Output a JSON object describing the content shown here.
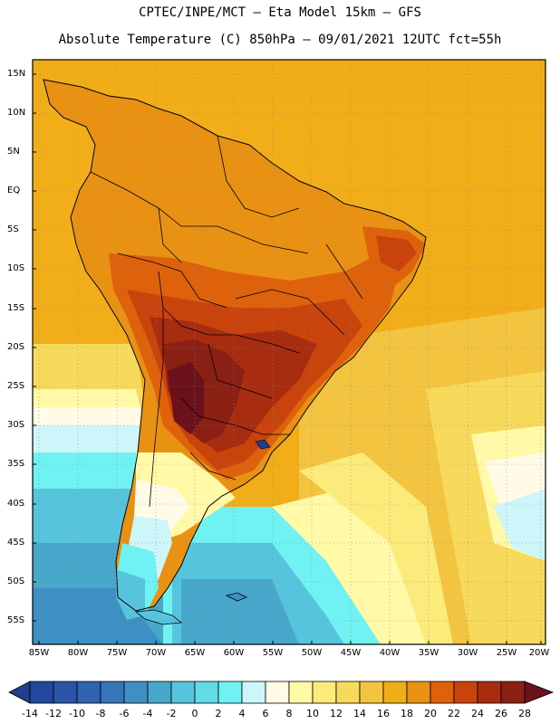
{
  "header": {
    "line1": "CPTEC/INPE/MCT –  Eta Model 15km – GFS",
    "line2": "Absolute Temperature (C) 850hPa – 09/01/2021 12UTC fct=55h"
  },
  "axes": {
    "lat_labels": [
      "15N",
      "10N",
      "5N",
      "EQ",
      "5S",
      "10S",
      "15S",
      "20S",
      "25S",
      "30S",
      "35S",
      "40S",
      "45S",
      "50S",
      "55S"
    ],
    "lon_labels": [
      "85W",
      "80W",
      "75W",
      "70W",
      "65W",
      "60W",
      "55W",
      "50W",
      "45W",
      "40W",
      "35W",
      "30W",
      "25W",
      "20W"
    ]
  },
  "colorbar": {
    "ticks": [
      "-14",
      "-12",
      "-10",
      "-8",
      "-6",
      "-4",
      "-2",
      "0",
      "2",
      "4",
      "6",
      "8",
      "10",
      "12",
      "14",
      "16",
      "18",
      "20",
      "22",
      "24",
      "26",
      "28"
    ],
    "colors": [
      "#1f3f8f",
      "#23479a",
      "#2a55a6",
      "#2f63b0",
      "#3576b8",
      "#3d8fc4",
      "#47a8cc",
      "#56c4dc",
      "#62dbe8",
      "#70f2f2",
      "#cdf6fb",
      "#fffbe6",
      "#fff9a8",
      "#fbeb7a",
      "#f7d95c",
      "#f3c440",
      "#f0ad18",
      "#e99112",
      "#de620b",
      "#c9430d",
      "#a82c10",
      "#8a1f14",
      "#6b1119"
    ],
    "unit": "C"
  },
  "map_colors": {
    "ocean_warm": "#f1ae19",
    "ocean_mid": "#f3c440",
    "ocean_light": "#fbeb7a",
    "ocean_pale": "#fff9a8",
    "ocean_cold": "#56c4dc",
    "ocean_cyan": "#70f2f2",
    "ocean_deep": "#3d8fc4",
    "land_warm": "#e99112",
    "land_hot": "#de620b",
    "land_hotter": "#c9430d",
    "land_hottest": "#8a1f14",
    "land_peak": "#6b1119",
    "coast": "#000000"
  }
}
